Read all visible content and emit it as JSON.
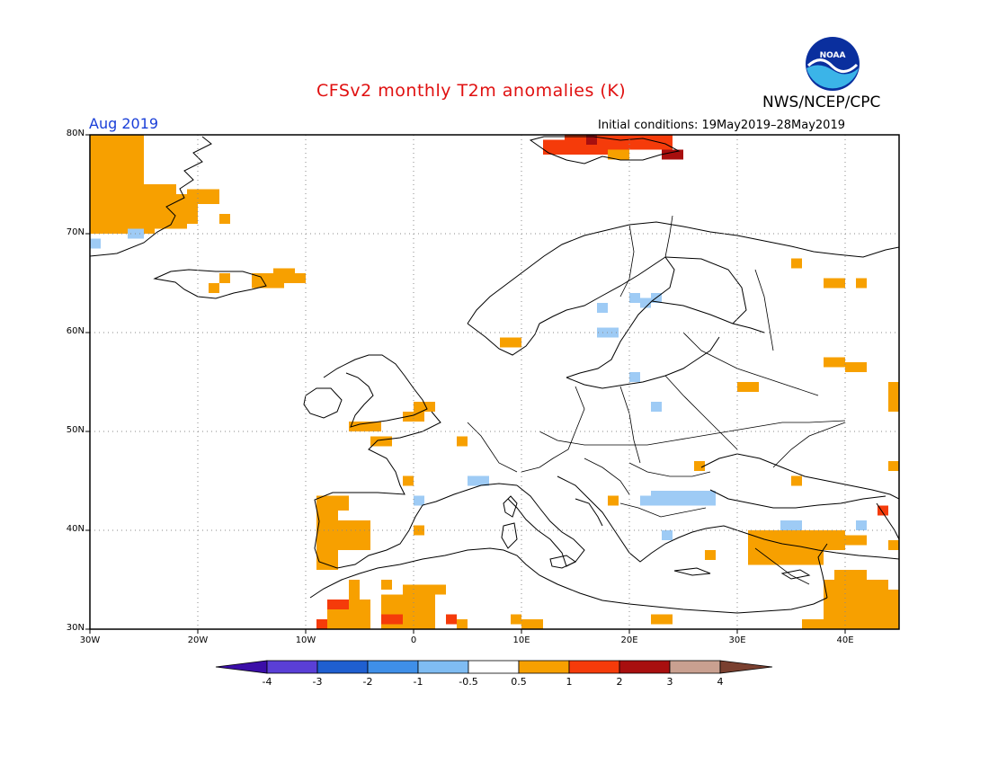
{
  "header": {
    "title": "CFSv2 monthly T2m anomalies (K)",
    "agency": "NWS/NCEP/CPC",
    "month": "Aug 2019",
    "initial_conditions": "Initial conditions: 19May2019–28May2019"
  },
  "logo": {
    "text": "NOAA",
    "colors": {
      "outer": "#0a2f9e",
      "sea": "#3bb4e8",
      "wave": "#ffffff"
    }
  },
  "map": {
    "region": "Europe",
    "lon_range": [
      -30,
      45
    ],
    "lat_range": [
      30,
      80
    ],
    "lat_labels": [
      "80N",
      "70N",
      "60N",
      "50N",
      "40N",
      "30N"
    ],
    "lon_labels": [
      "30W",
      "20W",
      "10W",
      "0",
      "10E",
      "20E",
      "30E",
      "40E"
    ],
    "grid": "dotted"
  },
  "colorbar": {
    "labels": [
      "-4",
      "-3",
      "-2",
      "-1",
      "-0.5",
      "0.5",
      "1",
      "2",
      "3",
      "4"
    ],
    "colors": [
      "#3b0ea8",
      "#5a3fd6",
      "#1f5fd0",
      "#3f8fe8",
      "#7fbcf2",
      "#ffffff",
      "#f7a000",
      "#f53b0a",
      "#a80f0f",
      "#c9a090",
      "#7a4030"
    ]
  },
  "anomaly_colors": {
    "c05": "#9ecbf5",
    "w1": "#f7a000",
    "w2": "#f53b0a",
    "w3": "#a80f0f"
  }
}
